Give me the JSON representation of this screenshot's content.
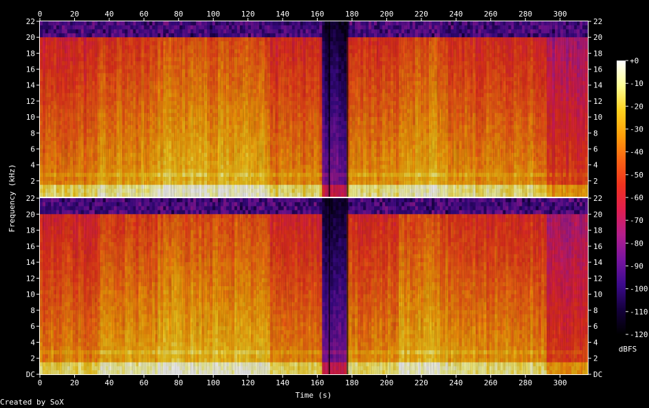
{
  "chart_data": {
    "type": "heatmap",
    "subtype": "spectrogram",
    "channels": 2,
    "xlabel": "Time (s)",
    "ylabel": "Frequency (kHz)",
    "x_ticks": [
      "0",
      "20",
      "40",
      "60",
      "80",
      "100",
      "120",
      "140",
      "160",
      "180",
      "200",
      "220",
      "240",
      "260",
      "280",
      "300"
    ],
    "y_ticks_upper": [
      "22",
      "20",
      "18",
      "16",
      "14",
      "12",
      "10",
      "8",
      "6",
      "4",
      "2"
    ],
    "y_ticks_lower": [
      "22",
      "20",
      "18",
      "16",
      "14",
      "12",
      "10",
      "8",
      "6",
      "4",
      "2",
      "DC"
    ],
    "xlim": [
      0,
      316
    ],
    "ylim_khz": [
      0,
      22
    ],
    "colorbar": {
      "label": "dBFS",
      "ticks": [
        "+0",
        "-10",
        "-20",
        "-30",
        "-40",
        "-50",
        "-60",
        "-70",
        "-80",
        "-90",
        "-100",
        "-110",
        "-120"
      ],
      "range": [
        -120,
        0
      ]
    },
    "colors": {
      "background": "#000000",
      "axis": "#ffffff",
      "scale": [
        "#000000",
        "#14003c",
        "#3c0a8c",
        "#7814a0",
        "#b41e8c",
        "#e11e50",
        "#f0321e",
        "#fa6414",
        "#ffa00a",
        "#ffd21e",
        "#ffff96",
        "#ffffff"
      ]
    },
    "regions": [
      {
        "start": 0,
        "end": 33,
        "level": -45
      },
      {
        "start": 33,
        "end": 68,
        "level": -38
      },
      {
        "start": 68,
        "end": 133,
        "level": -33
      },
      {
        "start": 133,
        "end": 162,
        "level": -44
      },
      {
        "start": 162,
        "end": 177,
        "level": -95
      },
      {
        "start": 177,
        "end": 207,
        "level": -42
      },
      {
        "start": 207,
        "end": 236,
        "level": -34
      },
      {
        "start": 236,
        "end": 292,
        "level": -42
      },
      {
        "start": 292,
        "end": 316,
        "level": -60
      }
    ],
    "credit": "Created by SoX"
  }
}
